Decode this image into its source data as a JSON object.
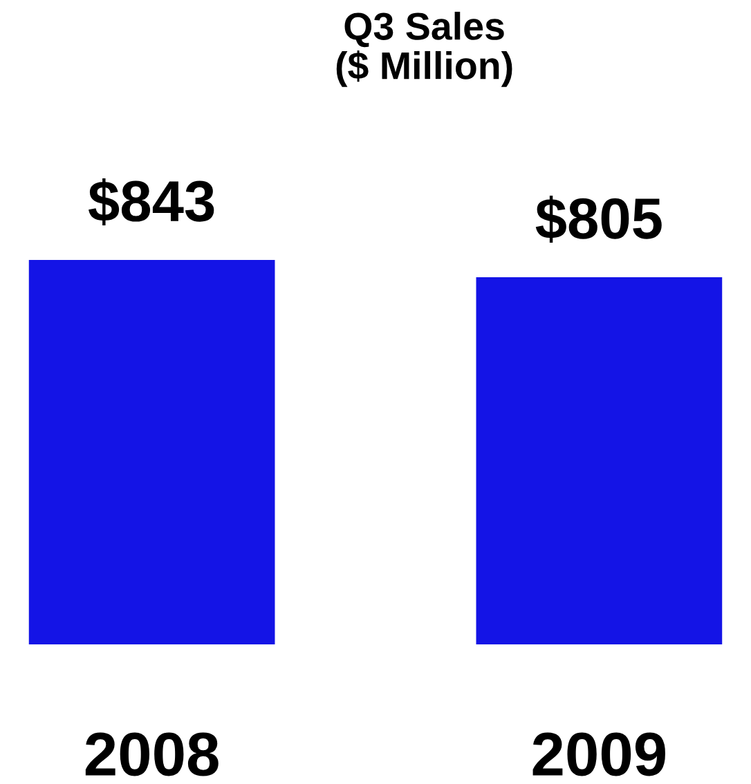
{
  "chart_data": {
    "type": "bar",
    "title": "Q3 Sales\n($ Million)",
    "categories": [
      "2008",
      "2009"
    ],
    "values": [
      843,
      805
    ],
    "value_labels": [
      "$843",
      "$805"
    ],
    "color": "#1414e6",
    "grid": false,
    "legend": false,
    "tick_labels": "x"
  }
}
